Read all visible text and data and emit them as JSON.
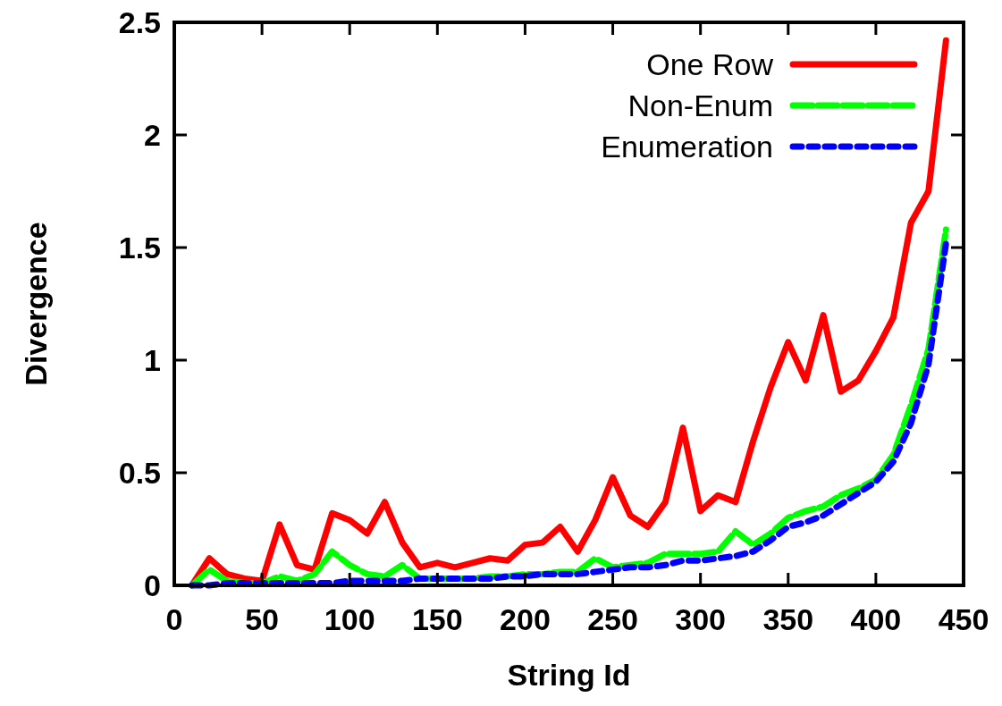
{
  "chart_data": {
    "type": "line",
    "xlabel": "String Id",
    "ylabel": "Divergence",
    "xlim": [
      0,
      450
    ],
    "ylim": [
      0,
      2.5
    ],
    "xticks": [
      0,
      50,
      100,
      150,
      200,
      250,
      300,
      350,
      400,
      450
    ],
    "yticks": [
      0,
      0.5,
      1,
      1.5,
      2,
      2.5
    ],
    "grid": false,
    "legend": "top right",
    "marker": "none",
    "x": [
      10,
      20,
      30,
      40,
      50,
      60,
      70,
      80,
      90,
      100,
      110,
      120,
      130,
      140,
      150,
      160,
      170,
      180,
      190,
      200,
      210,
      220,
      230,
      240,
      250,
      260,
      270,
      280,
      290,
      300,
      310,
      320,
      330,
      340,
      350,
      360,
      370,
      380,
      390,
      400,
      410,
      420,
      430,
      440
    ],
    "series": [
      {
        "name": "One Row",
        "color": "#ff0000",
        "line_style": "solid",
        "values": [
          0,
          0.12,
          0.05,
          0.03,
          0.02,
          0.27,
          0.09,
          0.07,
          0.32,
          0.29,
          0.23,
          0.37,
          0.19,
          0.08,
          0.1,
          0.08,
          0.1,
          0.12,
          0.11,
          0.18,
          0.19,
          0.26,
          0.15,
          0.29,
          0.48,
          0.31,
          0.26,
          0.37,
          0.7,
          0.33,
          0.4,
          0.37,
          0.64,
          0.88,
          1.08,
          0.91,
          1.2,
          0.86,
          0.91,
          1.04,
          1.19,
          1.61,
          1.75,
          2.42
        ]
      },
      {
        "name": "Non-Enum",
        "color": "#00ff00",
        "line_style": "dashed",
        "values": [
          0,
          0.07,
          0.02,
          0.01,
          0.01,
          0.04,
          0.02,
          0.05,
          0.15,
          0.09,
          0.05,
          0.04,
          0.09,
          0.03,
          0.03,
          0.03,
          0.03,
          0.04,
          0.04,
          0.05,
          0.05,
          0.06,
          0.06,
          0.12,
          0.08,
          0.09,
          0.1,
          0.14,
          0.14,
          0.14,
          0.15,
          0.24,
          0.18,
          0.23,
          0.3,
          0.33,
          0.35,
          0.4,
          0.43,
          0.47,
          0.58,
          0.8,
          1.05,
          1.58
        ]
      },
      {
        "name": "Enumeration",
        "color": "#0000ff",
        "line_style": "dotted",
        "values": [
          0,
          0,
          0.01,
          0.01,
          0.01,
          0.01,
          0.01,
          0.01,
          0.01,
          0.02,
          0.02,
          0.02,
          0.02,
          0.03,
          0.03,
          0.03,
          0.03,
          0.03,
          0.04,
          0.04,
          0.05,
          0.05,
          0.05,
          0.06,
          0.07,
          0.08,
          0.08,
          0.09,
          0.11,
          0.11,
          0.12,
          0.13,
          0.15,
          0.2,
          0.26,
          0.28,
          0.31,
          0.36,
          0.41,
          0.46,
          0.55,
          0.72,
          0.98,
          1.52
        ]
      }
    ]
  }
}
